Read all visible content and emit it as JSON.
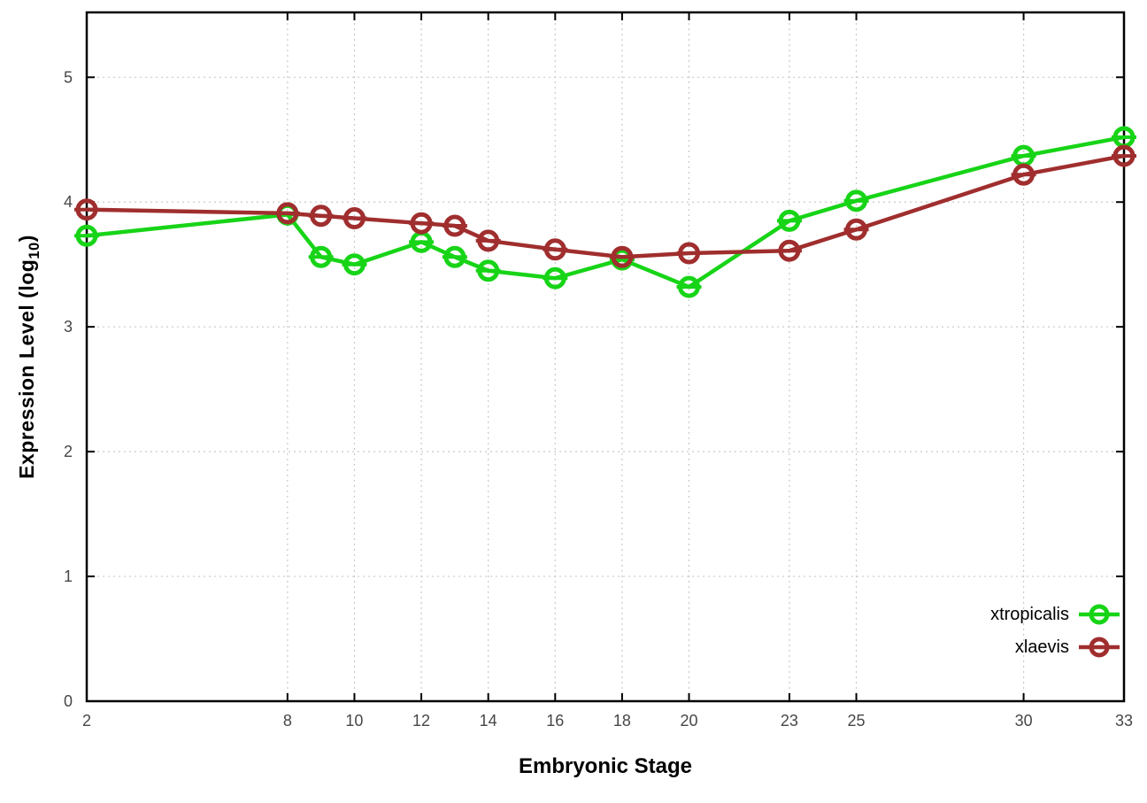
{
  "chart_data": {
    "type": "line",
    "title": "",
    "xlabel": "Embryonic Stage",
    "ylabel": "Expression Level (log10)",
    "ylabel_parts": {
      "main": "Expression Level (log",
      "sub": "10",
      "end": ")"
    },
    "x": [
      2,
      8,
      9,
      10,
      12,
      13,
      14,
      16,
      18,
      20,
      23,
      25,
      30,
      33
    ],
    "x_ticks": [
      2,
      8,
      10,
      12,
      14,
      16,
      18,
      20,
      23,
      25,
      30,
      33
    ],
    "x_tick_labels": [
      "2",
      "8",
      "10",
      "12",
      "14",
      "16",
      "18",
      "20",
      "23",
      "25",
      "30",
      "33"
    ],
    "y_ticks": [
      0,
      1,
      2,
      3,
      4,
      5
    ],
    "y_tick_labels": [
      "0",
      "1",
      "2",
      "3",
      "4",
      "5"
    ],
    "xlim": [
      2,
      33
    ],
    "ylim": [
      0,
      5.52
    ],
    "grid": "dotted",
    "legend_position": "inside-right-bottom",
    "series": [
      {
        "name": "xtropicalis",
        "color": "#17d417",
        "marker": "open-circle-with-dash",
        "values": [
          3.73,
          3.9,
          3.56,
          3.5,
          3.68,
          3.56,
          3.45,
          3.39,
          3.54,
          3.32,
          3.85,
          4.01,
          4.37,
          4.52
        ]
      },
      {
        "name": "xlaevis",
        "color": "#a02e2e",
        "marker": "open-circle-with-dash",
        "values": [
          3.94,
          3.91,
          3.89,
          3.87,
          3.83,
          3.81,
          3.69,
          3.62,
          3.56,
          3.59,
          3.61,
          3.78,
          4.22,
          4.37
        ]
      }
    ],
    "axis_color": "#000000",
    "grid_color": "#c9c9c9",
    "tick_label_color": "#474747"
  }
}
